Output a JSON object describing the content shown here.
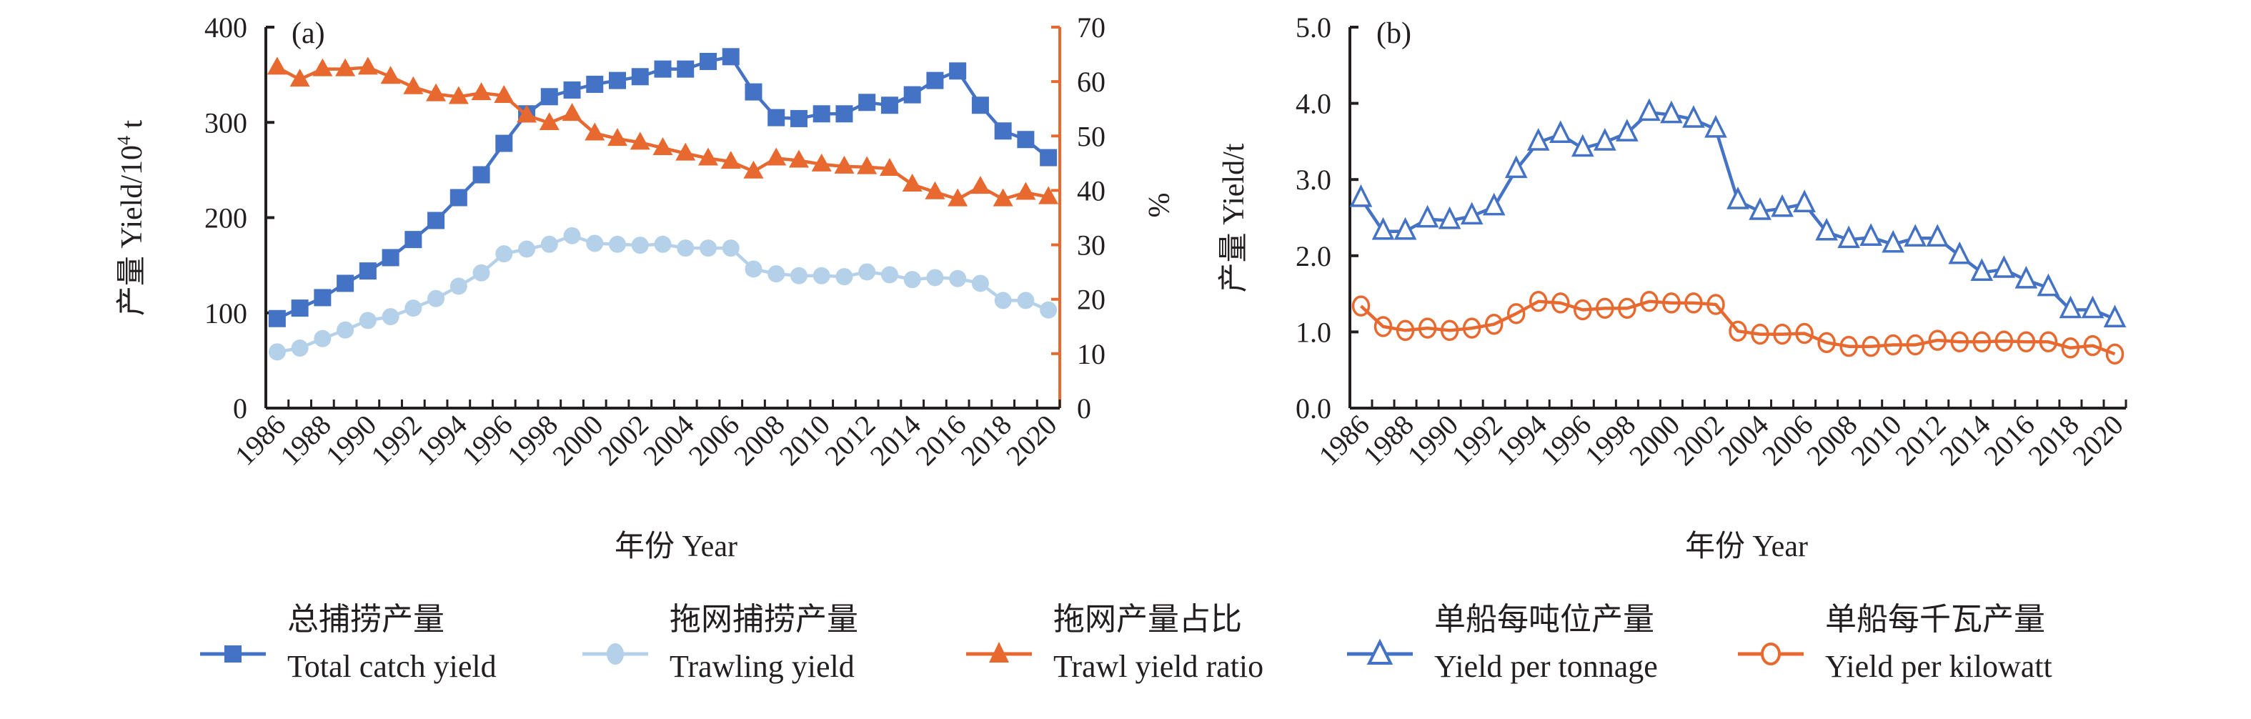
{
  "chart_data": [
    {
      "type": "line",
      "panel_label": "(a)",
      "xlabel": "年份 Year",
      "ylabel": "产量 Yield/10⁴ t",
      "ylabel_parts": {
        "main": "产量 Yield/10",
        "sup": "4",
        "tail": " t"
      },
      "y2label": "%",
      "ylim": [
        0,
        400
      ],
      "yticks": [
        "0",
        "100",
        "200",
        "300",
        "400"
      ],
      "y2lim": [
        0,
        70
      ],
      "y2ticks": [
        "0",
        "10",
        "20",
        "30",
        "40",
        "50",
        "60",
        "70"
      ],
      "grid": false,
      "x": [
        1986,
        1987,
        1988,
        1989,
        1990,
        1991,
        1992,
        1993,
        1994,
        1995,
        1996,
        1997,
        1998,
        1999,
        2000,
        2001,
        2002,
        2003,
        2004,
        2005,
        2006,
        2007,
        2008,
        2009,
        2010,
        2011,
        2012,
        2013,
        2014,
        2015,
        2016,
        2017,
        2018,
        2019,
        2020
      ],
      "xticks": [
        "1986",
        "1988",
        "1990",
        "1992",
        "1994",
        "1996",
        "1998",
        "2000",
        "2002",
        "2004",
        "2006",
        "2008",
        "2010",
        "2012",
        "2014",
        "2016",
        "2018",
        "2020"
      ],
      "series": [
        {
          "name": "总捕捞产量 Total catch yield",
          "axis": "left",
          "marker": "square-filled",
          "color": "#4472c4",
          "values": [
            94,
            105,
            116,
            131,
            144,
            158,
            177,
            197,
            221,
            245,
            278,
            309,
            327,
            334,
            340,
            344,
            348,
            356,
            356,
            364,
            369,
            332,
            305,
            304,
            309,
            309,
            321,
            318,
            329,
            344,
            354,
            318,
            291,
            282,
            263
          ]
        },
        {
          "name": "拖网捕捞产量 Trawling yield",
          "axis": "left",
          "marker": "circle-filled",
          "color": "#b4d1e9",
          "values": [
            59,
            63,
            73,
            82,
            92,
            96,
            105,
            115,
            128,
            142,
            162,
            167,
            172,
            181,
            173,
            172,
            171,
            172,
            168,
            168,
            168,
            146,
            141,
            139,
            139,
            138,
            143,
            140,
            135,
            137,
            136,
            131,
            113,
            113,
            103
          ]
        },
        {
          "name": "拖网产量占比 Trawl yield ratio",
          "axis": "right",
          "marker": "triangle-filled",
          "color": "#e8692f",
          "values": [
            62.6,
            60.4,
            62.3,
            62.3,
            62.6,
            60.9,
            59.0,
            57.7,
            57.2,
            57.9,
            57.4,
            53.8,
            52.4,
            54.1,
            50.5,
            49.5,
            48.8,
            47.8,
            46.8,
            45.9,
            45.3,
            43.5,
            45.9,
            45.5,
            44.8,
            44.4,
            44.3,
            44.0,
            41.1,
            39.7,
            38.4,
            40.7,
            38.4,
            39.6,
            38.8
          ]
        }
      ]
    },
    {
      "type": "line",
      "panel_label": "(b)",
      "xlabel": "年份 Year",
      "ylabel": "产量 Yield/t",
      "ylim": [
        0,
        5
      ],
      "yticks": [
        "0.0",
        "1.0",
        "2.0",
        "3.0",
        "4.0",
        "5.0"
      ],
      "grid": false,
      "x": [
        1986,
        1987,
        1988,
        1989,
        1990,
        1991,
        1992,
        1993,
        1994,
        1995,
        1996,
        1997,
        1998,
        1999,
        2000,
        2001,
        2002,
        2003,
        2004,
        2005,
        2006,
        2007,
        2008,
        2009,
        2010,
        2011,
        2012,
        2013,
        2014,
        2015,
        2016,
        2017,
        2018,
        2019,
        2020
      ],
      "xticks": [
        "1986",
        "1988",
        "1990",
        "1992",
        "1994",
        "1996",
        "1998",
        "2000",
        "2002",
        "2004",
        "2006",
        "2008",
        "2010",
        "2012",
        "2014",
        "2016",
        "2018",
        "2020"
      ],
      "series": [
        {
          "name": "单船每吨位产量 Yield per tonnage",
          "axis": "left",
          "marker": "triangle-open",
          "color": "#4472c4",
          "values": [
            2.75,
            2.32,
            2.32,
            2.48,
            2.46,
            2.52,
            2.64,
            3.13,
            3.49,
            3.59,
            3.41,
            3.49,
            3.61,
            3.88,
            3.85,
            3.79,
            3.66,
            2.72,
            2.58,
            2.62,
            2.68,
            2.31,
            2.21,
            2.24,
            2.15,
            2.23,
            2.23,
            2.0,
            1.78,
            1.82,
            1.68,
            1.58,
            1.29,
            1.29,
            1.17
          ]
        },
        {
          "name": "单船每千瓦产量 Yield per kilowatt",
          "axis": "left",
          "marker": "circle-open",
          "color": "#e8692f",
          "values": [
            1.34,
            1.07,
            1.02,
            1.05,
            1.02,
            1.05,
            1.1,
            1.24,
            1.4,
            1.38,
            1.29,
            1.31,
            1.31,
            1.4,
            1.38,
            1.38,
            1.36,
            1.01,
            0.97,
            0.97,
            0.98,
            0.86,
            0.81,
            0.81,
            0.83,
            0.83,
            0.89,
            0.87,
            0.87,
            0.88,
            0.87,
            0.87,
            0.79,
            0.82,
            0.71
          ]
        }
      ]
    }
  ],
  "legend": [
    {
      "zh": "总捕捞产量",
      "en": "Total catch yield",
      "marker": "square-filled",
      "color": "#4472c4"
    },
    {
      "zh": "拖网捕捞产量",
      "en": "Trawling yield",
      "marker": "circle-filled",
      "color": "#b4d1e9"
    },
    {
      "zh": "拖网产量占比",
      "en": "Trawl yield ratio",
      "marker": "triangle-filled",
      "color": "#e8692f"
    },
    {
      "zh": "单船每吨位产量",
      "en": "Yield per tonnage",
      "marker": "triangle-open",
      "color": "#4472c4"
    },
    {
      "zh": "单船每千瓦产量",
      "en": "Yield per kilowatt",
      "marker": "circle-open",
      "color": "#e8692f"
    }
  ],
  "colors": {
    "axis": "#231f20",
    "right_axis": "#e8692f"
  }
}
